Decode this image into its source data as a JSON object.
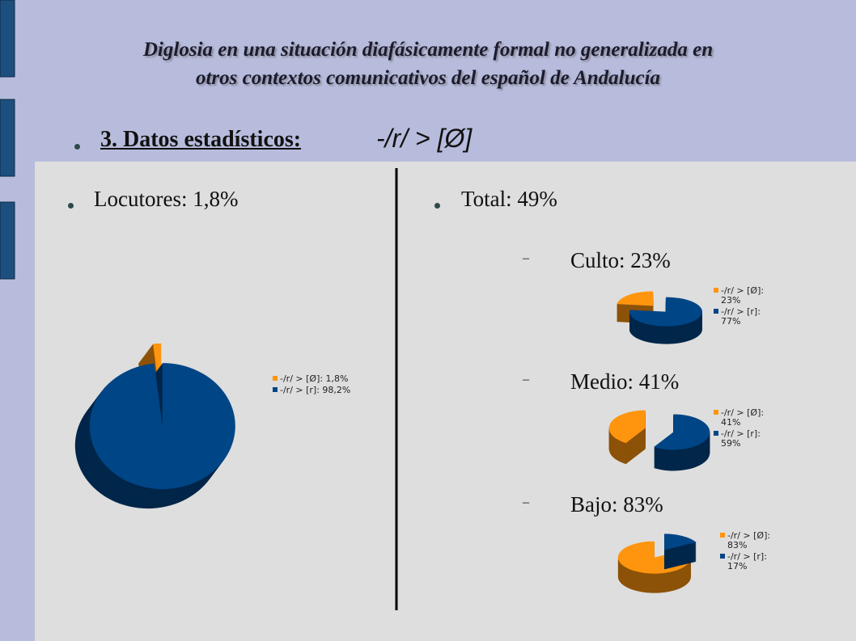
{
  "slide": {
    "title_lines": [
      "Diglosia en una situación diafásicamente formal no generalizada en",
      "otros contextos comunicativos del español de Andalucía"
    ],
    "heading": "3. Datos estadísticos:",
    "heading_formula": "-/r/ > [Ø]",
    "total": "Total: 49%"
  },
  "chart_data": [
    {
      "type": "pie",
      "title": "Locutores: 1,8%",
      "categories": [
        "-/r/ > [Ø]: 1,8%",
        "-/r/ > [r]: 98,2%"
      ],
      "values": [
        1.8,
        98.2
      ],
      "colors": [
        "#ff950e",
        "#004586"
      ]
    },
    {
      "type": "pie",
      "title": "Culto: 23%",
      "categories": [
        "-/r/ > [Ø]: 23%",
        "-/r/ > [r]: 77%"
      ],
      "values": [
        23,
        77
      ],
      "colors": [
        "#ff950e",
        "#004586"
      ]
    },
    {
      "type": "pie",
      "title": "Medio: 41%",
      "categories": [
        "-/r/ > [Ø]: 41%",
        "-/r/ > [r]: 59%"
      ],
      "values": [
        41,
        59
      ],
      "colors": [
        "#ff950e",
        "#004586"
      ]
    },
    {
      "type": "pie",
      "title": "Bajo: 83%",
      "categories": [
        "-/r/ > [Ø]: 83%",
        "-/r/ > [r]: 17%"
      ],
      "values": [
        83,
        17
      ],
      "colors": [
        "#ff950e",
        "#004586"
      ]
    }
  ]
}
